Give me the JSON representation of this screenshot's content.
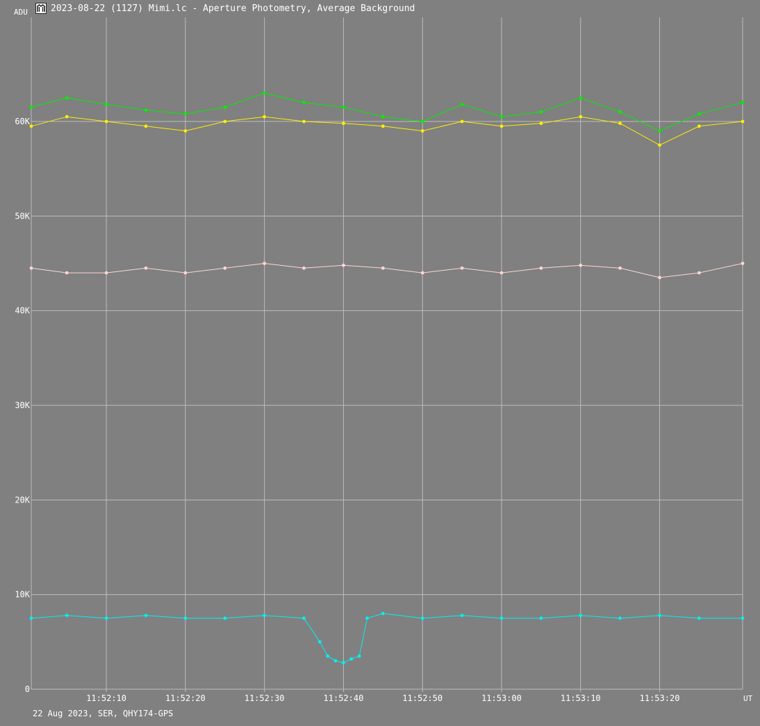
{
  "window": {
    "title": "2023-08-22 (1127) Mimi.lc - Aperture Photometry, Average Background",
    "icon": "app-logo-icon"
  },
  "footer": {
    "info": "22 Aug 2023, SER, QHY174-GPS"
  },
  "chart_data": {
    "type": "line",
    "title": "2023-08-22 (1127) Mimi.lc - Aperture Photometry, Average Background",
    "ylabel": "ADU",
    "xlabel": "UT",
    "ylim": [
      0,
      71000
    ],
    "xlim": [
      "11:52:00.5",
      "11:53:30.5"
    ],
    "y_ticks": [
      {
        "value": 0,
        "label": "0"
      },
      {
        "value": 10000,
        "label": "10K"
      },
      {
        "value": 20000,
        "label": "20K"
      },
      {
        "value": 30000,
        "label": "30K"
      },
      {
        "value": 40000,
        "label": "40K"
      },
      {
        "value": 50000,
        "label": "50K"
      },
      {
        "value": 60000,
        "label": "60K"
      }
    ],
    "x_ticks": [
      {
        "time": "11:52:10",
        "label": "11:52:10"
      },
      {
        "time": "11:52:20",
        "label": "11:52:20"
      },
      {
        "time": "11:52:30",
        "label": "11:52:30"
      },
      {
        "time": "11:52:40",
        "label": "11:52:40"
      },
      {
        "time": "11:52:50",
        "label": "11:52:50"
      },
      {
        "time": "11:53:00",
        "label": "11:53:00"
      },
      {
        "time": "11:53:10",
        "label": "11:53:10"
      },
      {
        "time": "11:53:20",
        "label": "11:53:20"
      }
    ],
    "grid": true,
    "colors": {
      "background": "#808080",
      "grid": "#bdbdbd",
      "series1": "#00ee00",
      "series2": "#ffee00",
      "series3": "#ffd6d6",
      "series4": "#00f0f0"
    },
    "series": [
      {
        "color": "#00ee00",
        "x": [
          "11:52:00.5",
          "11:52:05",
          "11:52:10",
          "11:52:15",
          "11:52:20",
          "11:52:25",
          "11:52:30",
          "11:52:35",
          "11:52:40",
          "11:52:45",
          "11:52:50",
          "11:52:55",
          "11:53:00",
          "11:53:05",
          "11:53:10",
          "11:53:15",
          "11:53:20",
          "11:53:25",
          "11:53:30.5"
        ],
        "y": [
          61500,
          62500,
          61800,
          61200,
          60800,
          61500,
          63000,
          62000,
          61500,
          60500,
          60000,
          61800,
          60500,
          61000,
          62500,
          61000,
          59000,
          60800,
          62000
        ]
      },
      {
        "color": "#ffee00",
        "x": [
          "11:52:00.5",
          "11:52:05",
          "11:52:10",
          "11:52:15",
          "11:52:20",
          "11:52:25",
          "11:52:30",
          "11:52:35",
          "11:52:40",
          "11:52:45",
          "11:52:50",
          "11:52:55",
          "11:53:00",
          "11:53:05",
          "11:53:10",
          "11:53:15",
          "11:53:20",
          "11:53:25",
          "11:53:30.5"
        ],
        "y": [
          59500,
          60500,
          60000,
          59500,
          59000,
          60000,
          60500,
          60000,
          59800,
          59500,
          59000,
          60000,
          59500,
          59800,
          60500,
          59800,
          57500,
          59500,
          60000
        ]
      },
      {
        "color": "#ffd6d6",
        "x": [
          "11:52:00.5",
          "11:52:05",
          "11:52:10",
          "11:52:15",
          "11:52:20",
          "11:52:25",
          "11:52:30",
          "11:52:35",
          "11:52:40",
          "11:52:45",
          "11:52:50",
          "11:52:55",
          "11:53:00",
          "11:53:05",
          "11:53:10",
          "11:53:15",
          "11:53:20",
          "11:53:25",
          "11:53:30.5"
        ],
        "y": [
          44500,
          44000,
          44000,
          44500,
          44000,
          44500,
          45000,
          44500,
          44800,
          44500,
          44000,
          44500,
          44000,
          44500,
          44800,
          44500,
          43500,
          44000,
          45000
        ]
      },
      {
        "color": "#00f0f0",
        "x": [
          "11:52:00.5",
          "11:52:05",
          "11:52:10",
          "11:52:15",
          "11:52:20",
          "11:52:25",
          "11:52:30",
          "11:52:35",
          "11:52:37",
          "11:52:38",
          "11:52:39",
          "11:52:40",
          "11:52:41",
          "11:52:42",
          "11:52:43",
          "11:52:45",
          "11:52:50",
          "11:52:55",
          "11:53:00",
          "11:53:05",
          "11:53:10",
          "11:53:15",
          "11:53:20",
          "11:53:25",
          "11:53:30.5"
        ],
        "y": [
          7500,
          7800,
          7500,
          7800,
          7500,
          7500,
          7800,
          7500,
          5000,
          3500,
          3000,
          2800,
          3200,
          3500,
          7500,
          8000,
          7500,
          7800,
          7500,
          7500,
          7800,
          7500,
          7800,
          7500,
          7500
        ]
      }
    ]
  }
}
